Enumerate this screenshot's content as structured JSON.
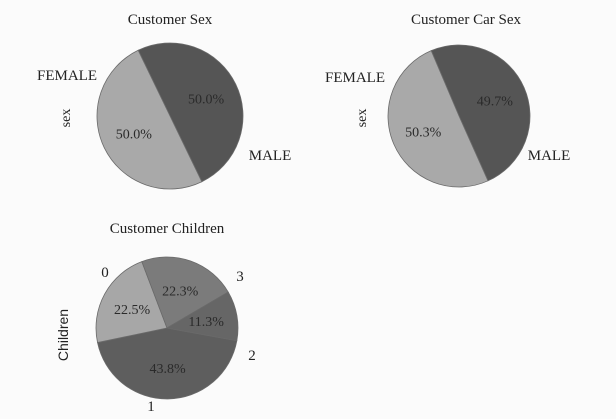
{
  "chart_data": [
    {
      "type": "pie",
      "title": "Customer Sex",
      "ylabel": "sex",
      "slices": [
        {
          "label": "FEMALE",
          "value": 50.0,
          "pct_label": "50.0%",
          "color": "#555555"
        },
        {
          "label": "MALE",
          "value": 50.0,
          "pct_label": "50.0%",
          "color": "#a9a9a9"
        }
      ]
    },
    {
      "type": "pie",
      "title": "Customer Car Sex",
      "ylabel": "sex",
      "slices": [
        {
          "label": "FEMALE",
          "value": 49.7,
          "pct_label": "49.7%",
          "color": "#555555"
        },
        {
          "label": "MALE",
          "value": 50.3,
          "pct_label": "50.3%",
          "color": "#a9a9a9"
        }
      ]
    },
    {
      "type": "pie",
      "title": "Customer Children",
      "ylabel": "Children",
      "slices": [
        {
          "label": "0",
          "value": 43.8,
          "pct_label": "43.8%",
          "color": "#5e5e5e"
        },
        {
          "label": "1",
          "value": 22.5,
          "pct_label": "22.5%",
          "color": "#a7a7a7"
        },
        {
          "label": "2",
          "value": 22.3,
          "pct_label": "22.3%",
          "color": "#7b7b7b"
        },
        {
          "label": "3",
          "value": 11.3,
          "pct_label": "11.3%",
          "color": "#666666"
        }
      ]
    }
  ]
}
